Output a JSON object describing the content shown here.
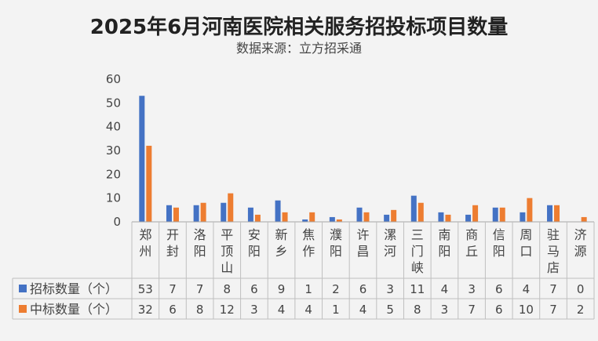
{
  "chart_data": {
    "type": "bar",
    "title": "2025年6月河南医院相关服务招投标项目数量",
    "subtitle": "数据来源：立方招采通",
    "categories": [
      "郑州",
      "开封",
      "洛阳",
      "平顶山",
      "安阳",
      "新乡",
      "焦作",
      "濮阳",
      "许昌",
      "漯河",
      "三门峡",
      "南阳",
      "商丘",
      "信阳",
      "周口",
      "驻马店",
      "济源"
    ],
    "series": [
      {
        "name": "招标数量（个）",
        "color": "#4472c4",
        "values": [
          53,
          7,
          7,
          8,
          6,
          9,
          1,
          2,
          6,
          3,
          11,
          4,
          3,
          6,
          4,
          7,
          0
        ]
      },
      {
        "name": "中标数量（个）",
        "color": "#ed7d31",
        "values": [
          32,
          6,
          8,
          12,
          3,
          4,
          4,
          1,
          4,
          5,
          8,
          3,
          7,
          6,
          10,
          7,
          2
        ]
      }
    ],
    "ylim": [
      0,
      60
    ],
    "yticks": [
      0,
      10,
      20,
      30,
      40,
      50,
      60
    ],
    "grid": false,
    "legend": "data-table"
  }
}
